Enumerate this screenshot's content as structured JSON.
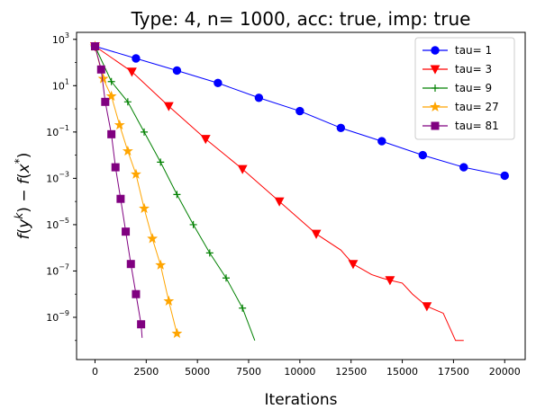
{
  "chart_data": {
    "type": "line",
    "title": "Type: 4, n= 1000, acc: true, imp: true",
    "xlabel": "Iterations",
    "ylabel": "f(y^k) − f(x^*)",
    "yscale": "log",
    "xlim": [
      -900,
      21000
    ],
    "ylim": [
      1.5e-11,
      2000
    ],
    "x_ticks": [
      0,
      2500,
      5000,
      7500,
      10000,
      12500,
      15000,
      17500,
      20000
    ],
    "y_ticks": [
      {
        "value": 1000,
        "mantissa": "10",
        "exp": "3"
      },
      {
        "value": 10,
        "mantissa": "10",
        "exp": "1"
      },
      {
        "value": 0.1,
        "mantissa": "10",
        "exp": "−1"
      },
      {
        "value": 0.001,
        "mantissa": "10",
        "exp": "−3"
      },
      {
        "value": 1e-05,
        "mantissa": "10",
        "exp": "−5"
      },
      {
        "value": 1e-07,
        "mantissa": "10",
        "exp": "−7"
      },
      {
        "value": 1e-09,
        "mantissa": "10",
        "exp": "−9"
      }
    ],
    "grid": false,
    "legend_position": "top-right",
    "series": [
      {
        "name": "tau= 1",
        "color": "#0000ff",
        "marker": "circle",
        "points": [
          [
            0,
            500
          ],
          [
            2000,
            150
          ],
          [
            4000,
            45
          ],
          [
            6000,
            13
          ],
          [
            8000,
            3
          ],
          [
            10000,
            0.8
          ],
          [
            12000,
            0.15
          ],
          [
            14000,
            0.04
          ],
          [
            16000,
            0.01
          ],
          [
            18000,
            0.003
          ],
          [
            20000,
            0.0013
          ]
        ],
        "markers": [
          [
            0,
            500
          ],
          [
            2000,
            150
          ],
          [
            4000,
            45
          ],
          [
            6000,
            13
          ],
          [
            8000,
            3
          ],
          [
            10000,
            0.8
          ],
          [
            12000,
            0.15
          ],
          [
            14000,
            0.04
          ],
          [
            16000,
            0.01
          ],
          [
            18000,
            0.003
          ],
          [
            20000,
            0.0013
          ]
        ]
      },
      {
        "name": "tau= 3",
        "color": "#ff0000",
        "marker": "triangle-down",
        "points": [
          [
            0,
            500
          ],
          [
            1800,
            40
          ],
          [
            3600,
            1.3
          ],
          [
            5400,
            0.05
          ],
          [
            7200,
            0.0025
          ],
          [
            9000,
            0.0001
          ],
          [
            10800,
            4e-06
          ],
          [
            12000,
            8e-07
          ],
          [
            12600,
            2e-07
          ],
          [
            13500,
            7e-08
          ],
          [
            14000,
            5e-08
          ],
          [
            14400,
            4e-08
          ],
          [
            15000,
            3e-08
          ],
          [
            15500,
            1e-08
          ],
          [
            16200,
            3e-09
          ],
          [
            17000,
            1.5e-09
          ],
          [
            17600,
            1e-10
          ],
          [
            18000,
            1e-10
          ]
        ],
        "markers": [
          [
            0,
            500
          ],
          [
            1800,
            40
          ],
          [
            3600,
            1.3
          ],
          [
            5400,
            0.05
          ],
          [
            7200,
            0.0025
          ],
          [
            9000,
            0.0001
          ],
          [
            10800,
            4e-06
          ],
          [
            12600,
            2e-07
          ],
          [
            14400,
            4e-08
          ],
          [
            16200,
            3e-09
          ]
        ]
      },
      {
        "name": "tau= 9",
        "color": "#008000",
        "marker": "plus",
        "points": [
          [
            0,
            500
          ],
          [
            800,
            15
          ],
          [
            1600,
            2
          ],
          [
            2400,
            0.1
          ],
          [
            3200,
            0.005
          ],
          [
            4000,
            0.0002
          ],
          [
            4800,
            1e-05
          ],
          [
            5600,
            6e-07
          ],
          [
            6400,
            5e-08
          ],
          [
            7200,
            2.5e-09
          ],
          [
            7800,
            1e-10
          ]
        ],
        "markers": [
          [
            0,
            500
          ],
          [
            800,
            15
          ],
          [
            1600,
            2
          ],
          [
            2400,
            0.1
          ],
          [
            3200,
            0.005
          ],
          [
            4000,
            0.0002
          ],
          [
            4800,
            1e-05
          ],
          [
            5600,
            6e-07
          ],
          [
            6400,
            5e-08
          ],
          [
            7200,
            2.5e-09
          ]
        ]
      },
      {
        "name": "tau= 27",
        "color": "#ffa500",
        "marker": "star",
        "points": [
          [
            0,
            500
          ],
          [
            400,
            20
          ],
          [
            800,
            3.5
          ],
          [
            1200,
            0.2
          ],
          [
            1600,
            0.015
          ],
          [
            2000,
            0.0015
          ],
          [
            2400,
            5e-05
          ],
          [
            2800,
            2.5e-06
          ],
          [
            3200,
            1.8e-07
          ],
          [
            3600,
            5e-09
          ],
          [
            4000,
            2e-10
          ]
        ],
        "markers": [
          [
            0,
            500
          ],
          [
            400,
            20
          ],
          [
            800,
            3.5
          ],
          [
            1200,
            0.2
          ],
          [
            1600,
            0.015
          ],
          [
            2000,
            0.0015
          ],
          [
            2400,
            5e-05
          ],
          [
            2800,
            2.5e-06
          ],
          [
            3200,
            1.8e-07
          ],
          [
            3600,
            5e-09
          ],
          [
            4000,
            2e-10
          ]
        ]
      },
      {
        "name": "tau= 81",
        "color": "#800080",
        "marker": "square",
        "points": [
          [
            0,
            500
          ],
          [
            300,
            50
          ],
          [
            500,
            2
          ],
          [
            800,
            0.08
          ],
          [
            1000,
            0.003
          ],
          [
            1250,
            0.00013
          ],
          [
            1500,
            5e-06
          ],
          [
            1750,
            2e-07
          ],
          [
            2000,
            1e-08
          ],
          [
            2250,
            5e-10
          ],
          [
            2300,
            1.3e-10
          ]
        ],
        "markers": [
          [
            0,
            500
          ],
          [
            300,
            50
          ],
          [
            500,
            2
          ],
          [
            800,
            0.08
          ],
          [
            1000,
            0.003
          ],
          [
            1250,
            0.00013
          ],
          [
            1500,
            5e-06
          ],
          [
            1750,
            2e-07
          ],
          [
            2000,
            1e-08
          ],
          [
            2250,
            5e-10
          ]
        ]
      }
    ]
  }
}
